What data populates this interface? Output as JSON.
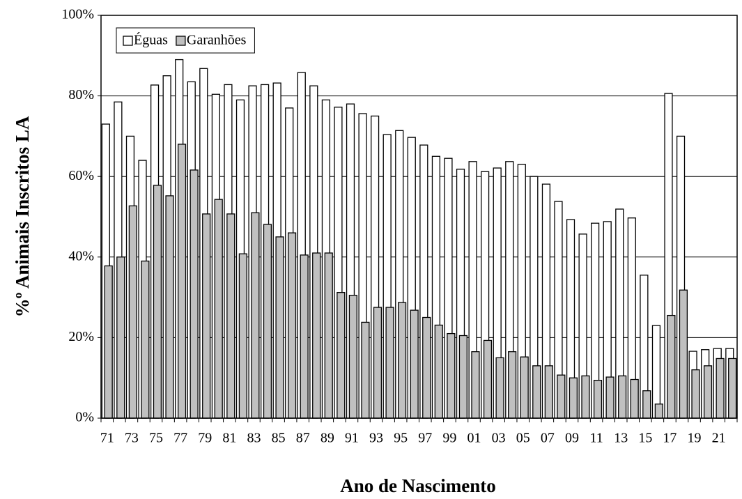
{
  "chart_data": {
    "type": "bar",
    "xlabel": "Ano de Nascimento",
    "ylabel": "%º Animais Inscritos LA",
    "categories": [
      "71",
      null,
      "73",
      null,
      "75",
      null,
      "77",
      null,
      "79",
      null,
      "81",
      null,
      "83",
      null,
      "85",
      null,
      "87",
      null,
      "89",
      null,
      "91",
      null,
      "93",
      null,
      "95",
      null,
      "97",
      null,
      "99",
      null,
      "01",
      null,
      "03",
      null,
      "05",
      null,
      "07",
      null,
      "09",
      null,
      "11",
      null,
      "13",
      null,
      "15",
      null,
      "17",
      null,
      "19",
      null,
      "21",
      null
    ],
    "series": [
      {
        "name": "Éguas",
        "color": "#ffffff",
        "values": [
          73,
          78.5,
          70,
          64,
          82.7,
          85,
          89,
          83.5,
          86.8,
          80.4,
          82.8,
          79,
          82.5,
          82.8,
          83.2,
          77,
          85.8,
          82.5,
          79,
          77.2,
          78,
          75.6,
          75,
          70.4,
          71.4,
          69.7,
          67.8,
          65,
          64.5,
          61.8,
          63.7,
          61.2,
          62.1,
          63.7,
          63,
          60,
          58.1,
          53.8,
          49.3,
          45.7,
          48.4,
          48.8,
          51.9,
          49.7,
          35.5,
          23,
          80.6,
          70,
          16.6,
          17,
          17.3,
          17.3
        ]
      },
      {
        "name": "Garanhões",
        "color": "#c0c0c0",
        "values": [
          37.8,
          40,
          52.7,
          39,
          57.8,
          55.2,
          68,
          61.6,
          50.7,
          54.3,
          50.7,
          40.8,
          51,
          48.1,
          45,
          46,
          40.5,
          41,
          41,
          31.2,
          30.5,
          23.8,
          27.5,
          27.5,
          28.7,
          26.8,
          25,
          23.1,
          21,
          20.5,
          16.5,
          19.3,
          15,
          16.5,
          15.2,
          13,
          13,
          10.7,
          10,
          10.5,
          9.4,
          10.2,
          10.5,
          9.6,
          6.8,
          3.5,
          25.5,
          31.8,
          12,
          13,
          14.8,
          14.8
        ]
      }
    ],
    "ylim": [
      0,
      100
    ],
    "yticks": [
      {
        "value": 0,
        "label": "0%"
      },
      {
        "value": 20,
        "label": "20%"
      },
      {
        "value": 40,
        "label": "40%"
      },
      {
        "value": 60,
        "label": "60%"
      },
      {
        "value": 80,
        "label": "80%"
      },
      {
        "value": 100,
        "label": "100%"
      }
    ],
    "grid": true,
    "legend": "upper left"
  }
}
